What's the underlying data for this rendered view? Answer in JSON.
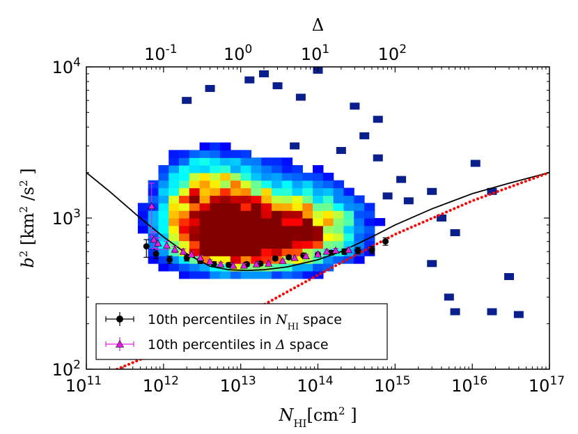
{
  "chart_data": {
    "type": "scatter",
    "scale": "log-log",
    "top_axis": {
      "label": "Δ",
      "ticks": [
        {
          "base": "10",
          "exp": "-1",
          "value": 0.1
        },
        {
          "base": "10",
          "exp": "0",
          "value": 1
        },
        {
          "base": "10",
          "exp": "1",
          "value": 10
        },
        {
          "base": "10",
          "exp": "2",
          "value": 100
        }
      ],
      "x_at_delta_1": 10000000000000.0
    },
    "x_axis": {
      "label_main": "N",
      "label_sub": "HI",
      "label_rest": "[cm",
      "label_sup": "2",
      "label_close": " ]",
      "range": [
        100000000000.0,
        1e+17
      ],
      "ticks": [
        {
          "base": "10",
          "exp": "11",
          "value": 100000000000.0
        },
        {
          "base": "10",
          "exp": "12",
          "value": 1000000000000.0
        },
        {
          "base": "10",
          "exp": "13",
          "value": 10000000000000.0
        },
        {
          "base": "10",
          "exp": "14",
          "value": 100000000000000.0
        },
        {
          "base": "10",
          "exp": "15",
          "value": 1000000000000000.0
        },
        {
          "base": "10",
          "exp": "16",
          "value": 1e+16
        },
        {
          "base": "10",
          "exp": "17",
          "value": 1e+17
        }
      ]
    },
    "y_axis": {
      "label_main": "b",
      "label_sup1": "2",
      "label_rest": " [km",
      "label_sup2": "2",
      "label_mid": " /s",
      "label_sup3": "2",
      "label_close": " ]",
      "range": [
        100,
        10000
      ],
      "ticks": [
        {
          "base": "10",
          "exp": "2",
          "value": 100
        },
        {
          "base": "10",
          "exp": "3",
          "value": 1000
        },
        {
          "base": "10",
          "exp": "4",
          "value": 10000
        }
      ]
    },
    "legend": {
      "position": "lower-left",
      "entries": [
        {
          "text_pre": "10th percentiles in ",
          "math_main": "N",
          "math_sub": "HI",
          "text_post": " space",
          "color": "#000000",
          "marker": "circle"
        },
        {
          "text_pre": "10th percentiles in ",
          "math_main": "Δ",
          "math_sub": "",
          "text_post": " space",
          "color": "#e020e0",
          "marker": "triangle"
        }
      ]
    },
    "series": [
      {
        "kind": "errorbar",
        "marker": "circle",
        "color": "#000000",
        "points": [
          {
            "x": 600000000000.0,
            "y": 650,
            "yerr_lo": 100,
            "yerr_hi": 70
          },
          {
            "x": 800000000000.0,
            "y": 580,
            "yerr_lo": 40,
            "yerr_hi": 40
          },
          {
            "x": 1200000000000.0,
            "y": 530,
            "yerr_lo": 30,
            "yerr_hi": 30
          },
          {
            "x": 2000000000000.0,
            "y": 545,
            "yerr_lo": 25,
            "yerr_hi": 25
          },
          {
            "x": 3000000000000.0,
            "y": 520,
            "yerr_lo": 20,
            "yerr_hi": 20
          },
          {
            "x": 4500000000000.0,
            "y": 495,
            "yerr_lo": 20,
            "yerr_hi": 20
          },
          {
            "x": 7000000000000.0,
            "y": 490,
            "yerr_lo": 15,
            "yerr_hi": 15
          },
          {
            "x": 12000000000000.0,
            "y": 495,
            "yerr_lo": 15,
            "yerr_hi": 15
          },
          {
            "x": 18000000000000.0,
            "y": 500,
            "yerr_lo": 15,
            "yerr_hi": 15
          },
          {
            "x": 28000000000000.0,
            "y": 540,
            "yerr_lo": 15,
            "yerr_hi": 15
          },
          {
            "x": 42000000000000.0,
            "y": 550,
            "yerr_lo": 15,
            "yerr_hi": 15
          },
          {
            "x": 65000000000000.0,
            "y": 565,
            "yerr_lo": 15,
            "yerr_hi": 15
          },
          {
            "x": 100000000000000.0,
            "y": 575,
            "yerr_lo": 20,
            "yerr_hi": 20
          },
          {
            "x": 150000000000000.0,
            "y": 590,
            "yerr_lo": 20,
            "yerr_hi": 20
          },
          {
            "x": 220000000000000.0,
            "y": 600,
            "yerr_lo": 25,
            "yerr_hi": 25
          },
          {
            "x": 330000000000000.0,
            "y": 610,
            "yerr_lo": 30,
            "yerr_hi": 30
          },
          {
            "x": 500000000000000.0,
            "y": 615,
            "yerr_lo": 35,
            "yerr_hi": 35
          },
          {
            "x": 750000000000000.0,
            "y": 700,
            "yerr_lo": 40,
            "yerr_hi": 40
          }
        ]
      },
      {
        "kind": "errorbar",
        "marker": "triangle",
        "color": "#e020e0",
        "points": [
          {
            "x": 700000000000.0,
            "y": 1200,
            "yerr_lo": 450,
            "yerr_hi": 500
          },
          {
            "x": 750000000000.0,
            "y": 720,
            "yerr_lo": 90,
            "yerr_hi": 90
          },
          {
            "x": 850000000000.0,
            "y": 680,
            "yerr_lo": 60,
            "yerr_hi": 60
          },
          {
            "x": 1100000000000.0,
            "y": 660,
            "yerr_lo": 40,
            "yerr_hi": 40
          },
          {
            "x": 1400000000000.0,
            "y": 620,
            "yerr_lo": 30,
            "yerr_hi": 30
          },
          {
            "x": 1800000000000.0,
            "y": 600,
            "yerr_lo": 25,
            "yerr_hi": 25
          },
          {
            "x": 2300000000000.0,
            "y": 575,
            "yerr_lo": 20,
            "yerr_hi": 20
          },
          {
            "x": 3000000000000.0,
            "y": 545,
            "yerr_lo": 20,
            "yerr_hi": 20
          },
          {
            "x": 4000000000000.0,
            "y": 515,
            "yerr_lo": 15,
            "yerr_hi": 15
          },
          {
            "x": 5500000000000.0,
            "y": 495,
            "yerr_lo": 15,
            "yerr_hi": 15
          },
          {
            "x": 8000000000000.0,
            "y": 485,
            "yerr_lo": 15,
            "yerr_hi": 15
          },
          {
            "x": 11000000000000.0,
            "y": 485,
            "yerr_lo": 15,
            "yerr_hi": 15
          },
          {
            "x": 16000000000000.0,
            "y": 495,
            "yerr_lo": 15,
            "yerr_hi": 15
          },
          {
            "x": 23000000000000.0,
            "y": 500,
            "yerr_lo": 15,
            "yerr_hi": 15
          },
          {
            "x": 35000000000000.0,
            "y": 520,
            "yerr_lo": 15,
            "yerr_hi": 15
          },
          {
            "x": 50000000000000.0,
            "y": 545,
            "yerr_lo": 15,
            "yerr_hi": 15
          },
          {
            "x": 70000000000000.0,
            "y": 560,
            "yerr_lo": 15,
            "yerr_hi": 15
          },
          {
            "x": 100000000000000.0,
            "y": 575,
            "yerr_lo": 20,
            "yerr_hi": 20
          },
          {
            "x": 130000000000000.0,
            "y": 600,
            "yerr_lo": 20,
            "yerr_hi": 20
          },
          {
            "x": 170000000000000.0,
            "y": 610,
            "yerr_lo": 20,
            "yerr_hi": 20
          },
          {
            "x": 250000000000000.0,
            "y": 615,
            "yerr_lo": 25,
            "yerr_hi": 25
          }
        ]
      },
      {
        "kind": "line",
        "style": "solid",
        "color": "#000000",
        "points": [
          {
            "x": 100000000000.0,
            "y": 2000
          },
          {
            "x": 200000000000.0,
            "y": 1500
          },
          {
            "x": 500000000000.0,
            "y": 1000
          },
          {
            "x": 1000000000000.0,
            "y": 750
          },
          {
            "x": 2000000000000.0,
            "y": 580
          },
          {
            "x": 4000000000000.0,
            "y": 480
          },
          {
            "x": 7000000000000.0,
            "y": 455
          },
          {
            "x": 12000000000000.0,
            "y": 450
          },
          {
            "x": 20000000000000.0,
            "y": 455
          },
          {
            "x": 40000000000000.0,
            "y": 475
          },
          {
            "x": 100000000000000.0,
            "y": 530
          },
          {
            "x": 200000000000000.0,
            "y": 600
          },
          {
            "x": 500000000000000.0,
            "y": 750
          },
          {
            "x": 1000000000000000.0,
            "y": 900
          },
          {
            "x": 3000000000000000.0,
            "y": 1150
          },
          {
            "x": 1e+16,
            "y": 1450
          },
          {
            "x": 3e+16,
            "y": 1700
          },
          {
            "x": 1e+17,
            "y": 2000
          }
        ]
      },
      {
        "kind": "line",
        "style": "dotted",
        "color": "#ff0000",
        "points": [
          {
            "x": 250000000000.0,
            "y": 100
          },
          {
            "x": 10000000000000.0,
            "y": 220
          },
          {
            "x": 100000000000000.0,
            "y": 420
          },
          {
            "x": 1000000000000000.0,
            "y": 780
          },
          {
            "x": 1e+16,
            "y": 1300
          },
          {
            "x": 1e+17,
            "y": 2000
          }
        ]
      }
    ],
    "heatmap": {
      "colormap": "jet",
      "grid": {
        "x_bins": 45,
        "y_bins": 40,
        "x_range": [
          100000000000.0,
          1e+17
        ],
        "y_range": [
          100,
          10000
        ]
      },
      "density_blobs": [
        {
          "cx": 15000000000000.0,
          "cy": 700,
          "amp": 1.0,
          "sx_dex": 0.55,
          "sy_dex": 0.12
        },
        {
          "cx": 5000000000000.0,
          "cy": 800,
          "amp": 0.75,
          "sx_dex": 0.45,
          "sy_dex": 0.14
        },
        {
          "cx": 10000000000000.0,
          "cy": 1300,
          "amp": 0.55,
          "sx_dex": 0.6,
          "sy_dex": 0.18
        },
        {
          "cx": 100000000000000.0,
          "cy": 900,
          "amp": 0.5,
          "sx_dex": 0.45,
          "sy_dex": 0.16
        },
        {
          "cx": 3000000000000.0,
          "cy": 1500,
          "amp": 0.35,
          "sx_dex": 0.35,
          "sy_dex": 0.18
        }
      ],
      "outliers": [
        {
          "x": 400000000000000.0,
          "y": 3500
        },
        {
          "x": 600000000000000.0,
          "y": 2500
        },
        {
          "x": 100000000000000.0,
          "y": 9500
        },
        {
          "x": 20000000000000.0,
          "y": 9000
        },
        {
          "x": 13000000000000.0,
          "y": 8200
        },
        {
          "x": 30000000000000.0,
          "y": 7500
        },
        {
          "x": 60000000000000.0,
          "y": 6300
        },
        {
          "x": 4000000000000.0,
          "y": 7200
        },
        {
          "x": 2000000000000.0,
          "y": 6000
        },
        {
          "x": 600000000000000.0,
          "y": 4500
        },
        {
          "x": 1200000000000000.0,
          "y": 1800
        },
        {
          "x": 3000000000000000.0,
          "y": 1500
        },
        {
          "x": 1.1e+16,
          "y": 2300
        },
        {
          "x": 1.8e+16,
          "y": 1500
        },
        {
          "x": 4000000000000000.0,
          "y": 1000
        },
        {
          "x": 6000000000000000.0,
          "y": 800
        },
        {
          "x": 3000000000000000.0,
          "y": 500
        },
        {
          "x": 5000000000000000.0,
          "y": 300
        },
        {
          "x": 6000000000000000.0,
          "y": 240
        },
        {
          "x": 1.8e+16,
          "y": 240
        },
        {
          "x": 3e+16,
          "y": 410
        },
        {
          "x": 4e+16,
          "y": 230
        },
        {
          "x": 50000000000000.0,
          "y": 3000
        },
        {
          "x": 200000000000000.0,
          "y": 2800
        },
        {
          "x": 800000000000000.0,
          "y": 1400
        },
        {
          "x": 1500000000000000.0,
          "y": 1300
        },
        {
          "x": 300000000000000.0,
          "y": 5500
        }
      ]
    }
  }
}
